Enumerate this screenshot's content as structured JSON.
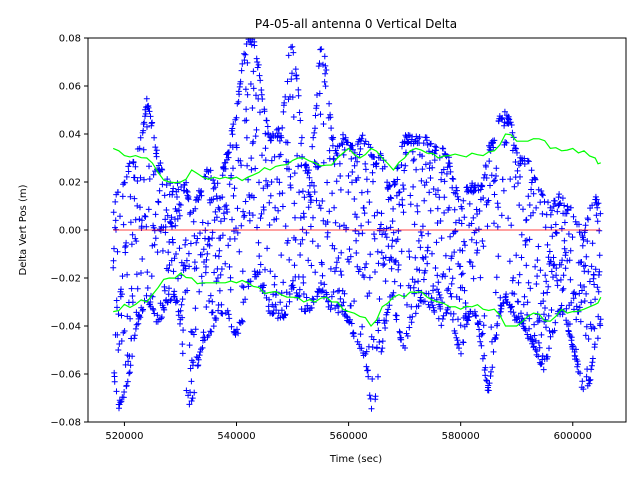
{
  "chart_data": {
    "type": "scatter",
    "title": "P4-05-all antenna 0 Vertical Delta",
    "xlabel": "Time (sec)",
    "ylabel": "Delta Vert Pos (m)",
    "xlim": [
      513500,
      609500
    ],
    "ylim": [
      -0.08,
      0.08
    ],
    "x_ticks": [
      520000,
      540000,
      560000,
      580000,
      600000
    ],
    "x_tick_labels": [
      "520000",
      "540000",
      "560000",
      "580000",
      "600000"
    ],
    "y_ticks": [
      -0.08,
      -0.06,
      -0.04,
      -0.02,
      0.0,
      0.02,
      0.04,
      0.06,
      0.08
    ],
    "y_tick_labels": [
      "−0.08",
      "−0.06",
      "−0.04",
      "−0.02",
      "0.00",
      "0.02",
      "0.04",
      "0.06",
      "0.08"
    ],
    "grid": false,
    "series": [
      {
        "marker": "plus",
        "color": "#0000ff",
        "envelope_x": [
          518000,
          519000,
          520000,
          521000,
          522000,
          523000,
          524000,
          525000,
          526000,
          527000,
          528000,
          529000,
          530000,
          531000,
          532000,
          533000,
          534000,
          535000,
          536000,
          537000,
          538000,
          539000,
          540000,
          541000,
          542000,
          543000,
          544000,
          545000,
          546000,
          547000,
          548000,
          549000,
          550000,
          551000,
          552000,
          553000,
          554000,
          555000,
          556000,
          557000,
          558000,
          559000,
          560000,
          561000,
          562000,
          563000,
          564000,
          565000,
          566000,
          567000,
          568000,
          569000,
          570000,
          571000,
          572000,
          573000,
          574000,
          575000,
          576000,
          577000,
          578000,
          579000,
          580000,
          581000,
          582000,
          583000,
          584000,
          585000,
          586000,
          587000,
          588000,
          589000,
          590000,
          591000,
          592000,
          593000,
          594000,
          595000,
          596000,
          597000,
          598000,
          599000,
          600000,
          601000,
          602000,
          603000,
          604000,
          605000
        ],
        "envelope_max": [
          0.01,
          0.02,
          0.02,
          0.03,
          0.03,
          0.04,
          0.055,
          0.045,
          0.03,
          0.025,
          0.02,
          0.02,
          0.02,
          0.02,
          0.005,
          0.015,
          0.02,
          0.03,
          0.02,
          0.02,
          0.03,
          0.04,
          0.05,
          0.07,
          0.08,
          0.08,
          0.07,
          0.05,
          0.04,
          0.045,
          0.04,
          0.07,
          0.08,
          0.06,
          0.03,
          0.025,
          0.045,
          0.08,
          0.07,
          0.04,
          0.035,
          0.04,
          0.04,
          0.035,
          0.04,
          0.04,
          0.035,
          0.03,
          0.035,
          0.02,
          0.02,
          0.03,
          0.04,
          0.04,
          0.04,
          0.04,
          0.04,
          0.035,
          0.035,
          0.035,
          0.03,
          0.02,
          0.01,
          0.02,
          0.02,
          0.02,
          0.02,
          0.035,
          0.04,
          0.05,
          0.05,
          0.045,
          0.035,
          0.03,
          0.03,
          0.025,
          0.02,
          0.015,
          0.01,
          0.015,
          0.015,
          0.01,
          0.01,
          0.005,
          0.0,
          0.01,
          0.015,
          0.01
        ],
        "envelope_min": [
          -0.06,
          -0.075,
          -0.07,
          -0.06,
          -0.045,
          -0.035,
          -0.03,
          -0.035,
          -0.04,
          -0.035,
          -0.03,
          -0.03,
          -0.04,
          -0.07,
          -0.075,
          -0.06,
          -0.05,
          -0.045,
          -0.04,
          -0.035,
          -0.035,
          -0.04,
          -0.045,
          -0.04,
          -0.025,
          -0.02,
          -0.02,
          -0.03,
          -0.035,
          -0.035,
          -0.04,
          -0.035,
          -0.025,
          -0.03,
          -0.035,
          -0.035,
          -0.03,
          -0.025,
          -0.03,
          -0.035,
          -0.035,
          -0.035,
          -0.04,
          -0.045,
          -0.05,
          -0.055,
          -0.075,
          -0.07,
          -0.05,
          -0.035,
          -0.03,
          -0.045,
          -0.05,
          -0.04,
          -0.035,
          -0.03,
          -0.03,
          -0.035,
          -0.04,
          -0.04,
          -0.035,
          -0.045,
          -0.055,
          -0.04,
          -0.035,
          -0.04,
          -0.055,
          -0.07,
          -0.05,
          -0.035,
          -0.03,
          -0.035,
          -0.04,
          -0.04,
          -0.045,
          -0.05,
          -0.055,
          -0.06,
          -0.05,
          -0.04,
          -0.035,
          -0.04,
          -0.05,
          -0.06,
          -0.07,
          -0.065,
          -0.05,
          -0.04
        ]
      },
      {
        "marker": "line",
        "color": "#00ff00",
        "x": [
          518000,
          520000,
          522000,
          524000,
          526000,
          528000,
          530000,
          532000,
          534000,
          536000,
          538000,
          540000,
          542000,
          544000,
          546000,
          548000,
          550000,
          552000,
          554000,
          556000,
          558000,
          560000,
          562000,
          564000,
          566000,
          568000,
          570000,
          572000,
          574000,
          576000,
          578000,
          580000,
          582000,
          584000,
          586000,
          588000,
          590000,
          592000,
          594000,
          596000,
          598000,
          600000,
          602000,
          604000,
          605000
        ],
        "values": [
          0.034,
          0.031,
          0.031,
          0.03,
          0.024,
          0.02,
          0.02,
          0.025,
          0.022,
          0.022,
          0.022,
          0.022,
          0.022,
          0.024,
          0.025,
          0.027,
          0.029,
          0.03,
          0.028,
          0.027,
          0.03,
          0.034,
          0.03,
          0.034,
          0.03,
          0.025,
          0.03,
          0.034,
          0.032,
          0.03,
          0.031,
          0.031,
          0.032,
          0.031,
          0.033,
          0.04,
          0.037,
          0.037,
          0.038,
          0.034,
          0.033,
          0.034,
          0.033,
          0.03,
          0.028
        ]
      },
      {
        "marker": "line",
        "color": "#00ff00",
        "x": [
          518000,
          520000,
          522000,
          524000,
          526000,
          528000,
          530000,
          532000,
          534000,
          536000,
          538000,
          540000,
          542000,
          544000,
          546000,
          548000,
          550000,
          552000,
          554000,
          556000,
          558000,
          560000,
          562000,
          564000,
          566000,
          568000,
          570000,
          572000,
          574000,
          576000,
          578000,
          580000,
          582000,
          584000,
          586000,
          588000,
          590000,
          592000,
          594000,
          596000,
          598000,
          600000,
          602000,
          604000,
          605000
        ],
        "values": [
          -0.034,
          -0.031,
          -0.031,
          -0.03,
          -0.024,
          -0.02,
          -0.018,
          -0.02,
          -0.022,
          -0.022,
          -0.022,
          -0.022,
          -0.022,
          -0.024,
          -0.026,
          -0.027,
          -0.028,
          -0.03,
          -0.03,
          -0.028,
          -0.03,
          -0.034,
          -0.036,
          -0.04,
          -0.032,
          -0.028,
          -0.028,
          -0.026,
          -0.028,
          -0.03,
          -0.032,
          -0.033,
          -0.032,
          -0.033,
          -0.033,
          -0.04,
          -0.04,
          -0.036,
          -0.035,
          -0.038,
          -0.033,
          -0.034,
          -0.033,
          -0.031,
          -0.028
        ]
      },
      {
        "marker": "line",
        "color": "#ff0000",
        "x": [
          518000,
          605000
        ],
        "values": [
          0.0,
          0.0
        ]
      }
    ]
  }
}
